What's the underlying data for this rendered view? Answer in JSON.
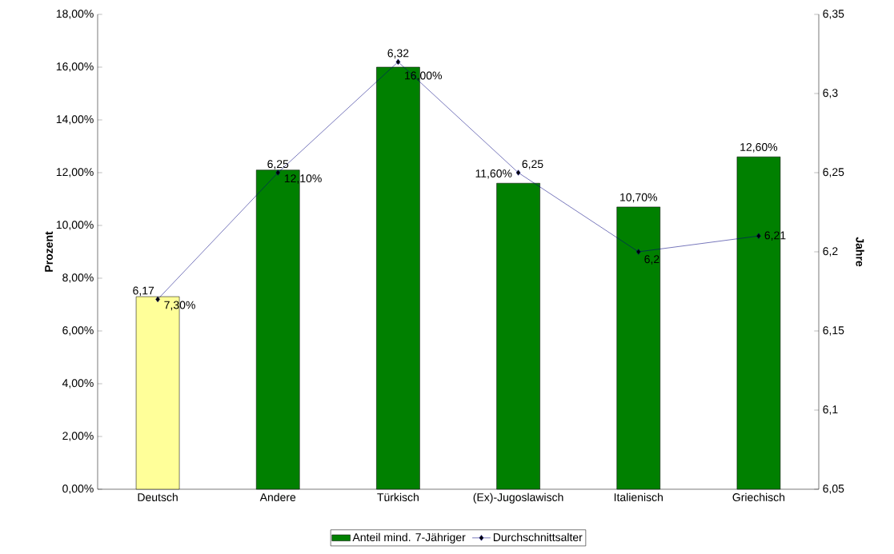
{
  "chart_data": {
    "type": "bar",
    "categories": [
      "Deutsch",
      "Andere",
      "Türkisch",
      "(Ex)-Jugoslawisch",
      "Italienisch",
      "Griechisch"
    ],
    "ylabel": "Prozent",
    "y2label": "Jahre",
    "ylim": [
      0,
      18
    ],
    "yticks": [
      {
        "value": 0,
        "label": "0,00%"
      },
      {
        "value": 2,
        "label": "2,00%"
      },
      {
        "value": 4,
        "label": "4,00%"
      },
      {
        "value": 6,
        "label": "6,00%"
      },
      {
        "value": 8,
        "label": "8,00%"
      },
      {
        "value": 10,
        "label": "10,00%"
      },
      {
        "value": 12,
        "label": "12,00%"
      },
      {
        "value": 14,
        "label": "14,00%"
      },
      {
        "value": 16,
        "label": "16,00%"
      },
      {
        "value": 18,
        "label": "18,00%"
      }
    ],
    "y2lim": [
      6.05,
      6.35
    ],
    "y2ticks": [
      {
        "value": 6.05,
        "label": "6,05"
      },
      {
        "value": 6.1,
        "label": "6,1"
      },
      {
        "value": 6.15,
        "label": "6,15"
      },
      {
        "value": 6.2,
        "label": "6,2"
      },
      {
        "value": 6.25,
        "label": "6,25"
      },
      {
        "value": 6.3,
        "label": "6,3"
      },
      {
        "value": 6.35,
        "label": "6,35"
      }
    ],
    "legend": "bottom",
    "grid": false,
    "series": [
      {
        "name": "Anteil mind. 7-Jähriger",
        "colors": [
          "#ffff99",
          "#008000",
          "#008000",
          "#008000",
          "#008000",
          "#008000"
        ],
        "values": [
          7.3,
          12.1,
          16.0,
          11.6,
          10.7,
          12.6
        ],
        "value_labels": [
          "7,30%",
          "12,10%",
          "16,00%",
          "11,60%",
          "10,70%",
          "12,60%"
        ]
      },
      {
        "name": "Durchschnittsalter",
        "type": "line",
        "axis": "y2",
        "color": "#000080",
        "marker": "diamond",
        "line_style": "solid",
        "values": [
          6.17,
          6.25,
          6.32,
          6.25,
          6.2,
          6.21
        ],
        "value_labels": [
          "6,17",
          "6,25",
          "6,32",
          "6,25",
          "6,2",
          "6,21"
        ]
      }
    ]
  }
}
